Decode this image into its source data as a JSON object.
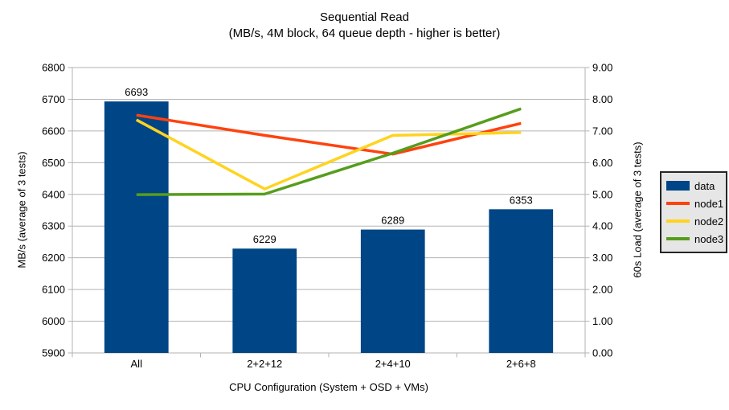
{
  "chart_data": {
    "type": "combo-bar-line",
    "title": "Sequential Read",
    "subtitle": "(MB/s, 4M block, 64 queue depth - higher is better)",
    "categories": [
      "All",
      "2+2+12",
      "2+4+10",
      "2+6+8"
    ],
    "series": [
      {
        "name": "data",
        "type": "bar",
        "axis": "left",
        "color": "#004586",
        "values": [
          6693,
          6229,
          6289,
          6353
        ],
        "show_data_labels": true
      },
      {
        "name": "node1",
        "type": "line",
        "axis": "right",
        "color": "#ff420e",
        "values": [
          7.5,
          6.86,
          6.27,
          7.24
        ]
      },
      {
        "name": "node2",
        "type": "line",
        "axis": "right",
        "color": "#ffd320",
        "values": [
          7.35,
          5.17,
          6.86,
          6.95
        ]
      },
      {
        "name": "node3",
        "type": "line",
        "axis": "right",
        "color": "#579d1c",
        "values": [
          4.99,
          5.01,
          6.3,
          7.7
        ]
      }
    ],
    "x_axis": {
      "title": "CPU Configuration (System + OSD + VMs)"
    },
    "left_axis": {
      "title": "MB/s (average of 3 tests)",
      "min": 5900,
      "max": 6800,
      "step": 100,
      "decimals": 0
    },
    "right_axis": {
      "title": "60s Load (average of 3 tests)",
      "min": 0,
      "max": 9,
      "step": 1,
      "decimals": 2
    },
    "legend": {
      "position": "right",
      "entries": [
        "data",
        "node1",
        "node2",
        "node3"
      ]
    },
    "grid": {
      "horizontal": true
    },
    "colors": {
      "grid_line": "#b3b3b3",
      "axis_line": "#b3b3b3",
      "text": "#000000",
      "legend_background": "#e6e6e6",
      "legend_border": "#262626",
      "chart_background": "#ffffff"
    }
  }
}
